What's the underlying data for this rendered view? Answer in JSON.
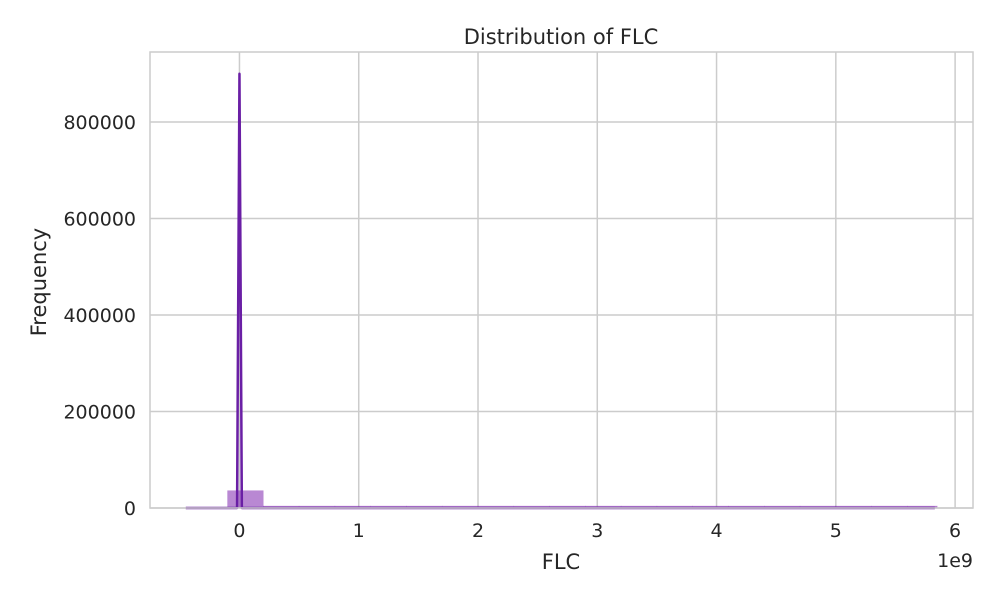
{
  "chart_data": {
    "type": "bar",
    "title": "Distribution of FLC",
    "xlabel": "FLC",
    "ylabel": "Frequency",
    "x_offset_label": "1e9",
    "grid": true,
    "xlim": [
      -0.75,
      6.15
    ],
    "ylim": [
      0,
      945000
    ],
    "x_ticks": [
      0,
      1,
      2,
      3,
      4,
      5,
      6
    ],
    "x_tick_labels": [
      "0",
      "1",
      "2",
      "3",
      "4",
      "5",
      "6"
    ],
    "y_ticks": [
      0,
      200000,
      400000,
      600000,
      800000
    ],
    "y_tick_labels": [
      "0",
      "200000",
      "400000",
      "600000",
      "800000"
    ],
    "histogram": {
      "bin_edges": [
        -0.1,
        0.2,
        0.5,
        0.8,
        1.1,
        1.4,
        1.7,
        2.0,
        2.3,
        2.6,
        2.9,
        3.2,
        3.5,
        3.8,
        4.1,
        4.4,
        4.7,
        5.0,
        5.3,
        5.6,
        5.85
      ],
      "counts": [
        36000,
        150,
        80,
        50,
        40,
        30,
        20,
        20,
        10,
        10,
        10,
        10,
        10,
        10,
        10,
        10,
        10,
        10,
        10,
        10
      ],
      "color": "#8e3fb8"
    },
    "kde": {
      "x": [
        -0.45,
        -0.1,
        -0.02,
        0.0,
        0.02,
        0.1,
        0.5,
        1.0,
        2.0,
        3.0,
        4.0,
        5.0,
        5.83
      ],
      "y": [
        0,
        0,
        0,
        900000,
        0,
        0,
        0,
        0,
        0,
        0,
        0,
        0,
        0
      ],
      "color": "#6a1fa5"
    }
  }
}
